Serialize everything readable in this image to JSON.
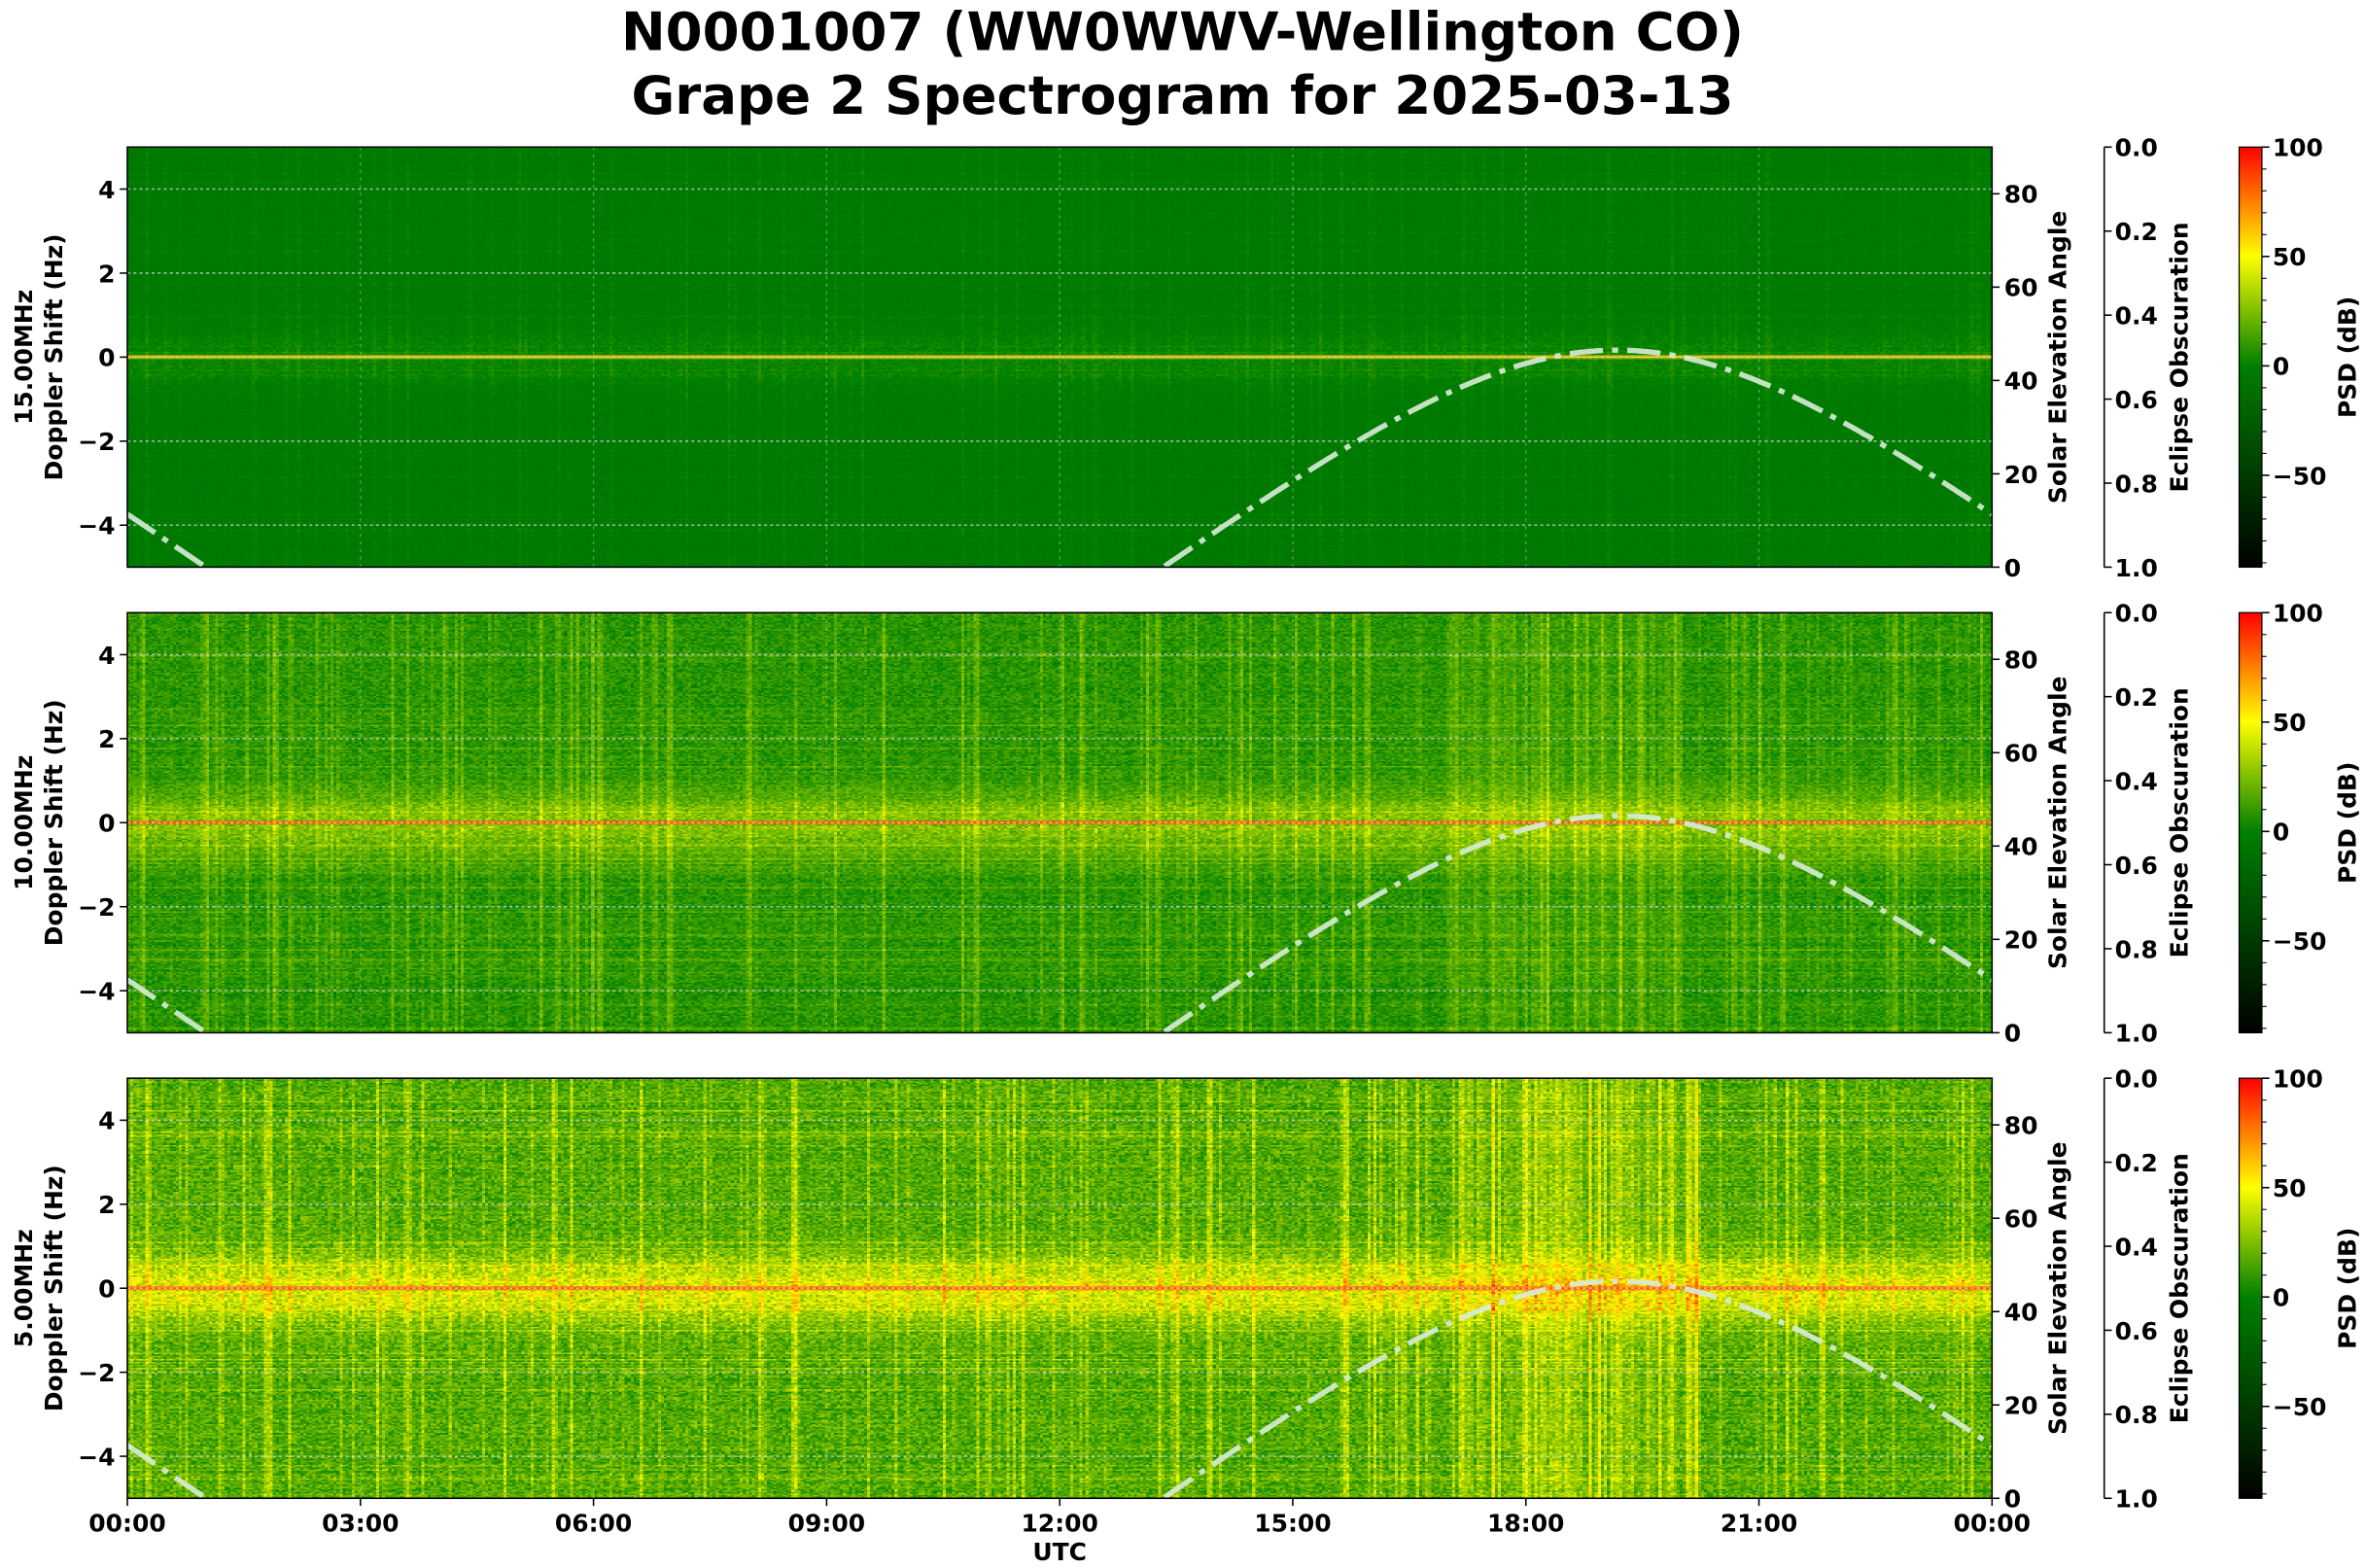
{
  "title": {
    "line1": "N0001007 (WW0WWV-Wellington CO)",
    "line2": "Grape 2 Spectrogram for 2025-03-13"
  },
  "chart_data": {
    "type": "heatmap",
    "xlabel": "UTC",
    "x_ticks": [
      "00:00",
      "03:00",
      "06:00",
      "09:00",
      "12:00",
      "15:00",
      "18:00",
      "21:00",
      "00:00"
    ],
    "x_range_hours": [
      0,
      24
    ],
    "grid": true,
    "colormap": [
      "#000000",
      "#008000",
      "#ffff00",
      "#ff0000"
    ],
    "panels": [
      {
        "frequency": "15.00MHz",
        "ylabel": "Doppler Shift (Hz)",
        "ylim": [
          -5,
          5
        ],
        "y_ticks": [
          "4",
          "2",
          "0",
          "−2",
          "−4"
        ],
        "y_tick_values": [
          4,
          2,
          0,
          -2,
          -4
        ],
        "carrier_line_color": "#ffd000",
        "base_psd_db": -5,
        "right_axis": {
          "label": "Solar Elevation Angle",
          "ylim": [
            0,
            90
          ],
          "ticks": [
            "0",
            "20",
            "40",
            "60",
            "80"
          ]
        },
        "eclipse_axis": {
          "label": "Eclipse Obscuration",
          "ylim": [
            1.0,
            0.0
          ],
          "ticks": [
            "0.0",
            "0.2",
            "0.4",
            "0.6",
            "0.8",
            "1.0"
          ]
        },
        "colorbar": {
          "label": "PSD (dB)",
          "range": [
            -92,
            100
          ],
          "ticks": [
            "100",
            "50",
            "0",
            "−50"
          ],
          "tick_values": [
            100,
            50,
            0,
            -50
          ]
        }
      },
      {
        "frequency": "10.00MHz",
        "ylabel": "Doppler Shift (Hz)",
        "ylim": [
          -5,
          5
        ],
        "y_ticks": [
          "4",
          "2",
          "0",
          "−2",
          "−4"
        ],
        "y_tick_values": [
          4,
          2,
          0,
          -2,
          -4
        ],
        "carrier_line_color": "#ff5000",
        "base_psd_db": 8,
        "right_axis": {
          "label": "Solar Elevation Angle",
          "ylim": [
            0,
            90
          ],
          "ticks": [
            "0",
            "20",
            "40",
            "60",
            "80"
          ]
        },
        "eclipse_axis": {
          "label": "Eclipse Obscuration",
          "ylim": [
            1.0,
            0.0
          ],
          "ticks": [
            "0.0",
            "0.2",
            "0.4",
            "0.6",
            "0.8",
            "1.0"
          ]
        },
        "colorbar": {
          "label": "PSD (dB)",
          "range": [
            -92,
            100
          ],
          "ticks": [
            "100",
            "50",
            "0",
            "−50"
          ],
          "tick_values": [
            100,
            50,
            0,
            -50
          ]
        }
      },
      {
        "frequency": "5.00MHz",
        "ylabel": "Doppler Shift (Hz)",
        "ylim": [
          -5,
          5
        ],
        "y_ticks": [
          "4",
          "2",
          "0",
          "−2",
          "−4"
        ],
        "y_tick_values": [
          4,
          2,
          0,
          -2,
          -4
        ],
        "carrier_line_color": "#ff5000",
        "base_psd_db": 16,
        "right_axis": {
          "label": "Solar Elevation Angle",
          "ylim": [
            0,
            90
          ],
          "ticks": [
            "0",
            "20",
            "40",
            "60",
            "80"
          ]
        },
        "eclipse_axis": {
          "label": "Eclipse Obscuration",
          "ylim": [
            1.0,
            0.0
          ],
          "ticks": [
            "0.0",
            "0.2",
            "0.4",
            "0.6",
            "0.8",
            "1.0"
          ]
        },
        "colorbar": {
          "label": "PSD (dB)",
          "range": [
            -92,
            100
          ],
          "ticks": [
            "100",
            "50",
            "0",
            "−50"
          ],
          "tick_values": [
            100,
            50,
            0,
            -50
          ]
        }
      }
    ],
    "solar_elevation": {
      "style": "dash-dot",
      "color": "#d8ecd8",
      "peak_deg": 46.5,
      "peak_time_utc": "19:10",
      "sunrise_utc": "13:15",
      "sunset_utc": "01:00",
      "value_at_00_utc_deg": 11
    }
  }
}
